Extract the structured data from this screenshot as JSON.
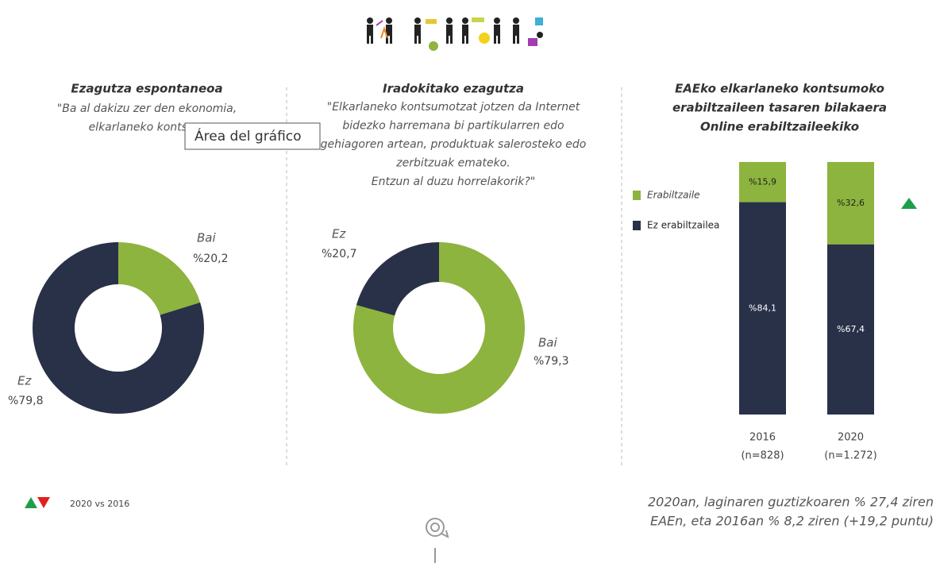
{
  "chart_data": [
    {
      "type": "donut",
      "title": "Ezagutza espontaneoa",
      "subtitle": [
        "\"Ba al dakizu zer den ekonomia,",
        "elkarlaneko kontsum"
      ],
      "categories": [
        "Bai",
        "Ez"
      ],
      "values": [
        20.2,
        79.8
      ],
      "value_labels": [
        "%20,2",
        "%79,8"
      ],
      "colors": [
        "#8db43e",
        "#283148"
      ]
    },
    {
      "type": "donut",
      "title": "Iradokitako ezagutza",
      "subtitle": [
        "\"Elkarlaneko kontsumotzat jotzen da Internet",
        "bidezko harremana bi partikularren edo",
        "gehiagoren artean, produktuak salerosteko edo",
        "zerbitzuak emateko.",
        "Entzun al duzu horrelakorik?\""
      ],
      "categories": [
        "Bai",
        "Ez"
      ],
      "values": [
        79.3,
        20.7
      ],
      "value_labels": [
        "%79,3",
        "%20,7"
      ],
      "colors": [
        "#8db43e",
        "#283148"
      ]
    },
    {
      "type": "stacked-bar",
      "title": [
        "EAEko elkarlaneko kontsumoko",
        "erabiltzaileen tasaren bilakaera",
        "Online erabiltzaileekiko"
      ],
      "categories": [
        "2016",
        "2020"
      ],
      "category_notes": [
        "(n=828)",
        "(n=1.272)"
      ],
      "series": [
        {
          "name": "Erabiltzaile",
          "color": "#8db43e",
          "values": [
            15.9,
            32.6
          ],
          "value_labels": [
            "%15,9",
            "%32,6"
          ]
        },
        {
          "name": "Ez erabiltzailea",
          "color": "#283148",
          "values": [
            84.1,
            67.4
          ],
          "value_labels": [
            "%84,1",
            "%67,4"
          ]
        }
      ]
    }
  ],
  "tooltip": "Área del gráfico",
  "legend_note": "2020 vs 2016",
  "footnote": [
    "2020an, laginaren guztizkoaren % 27,4 ziren",
    "EAEn, eta 2016an % 8,2 ziren (+19,2 puntu)"
  ]
}
